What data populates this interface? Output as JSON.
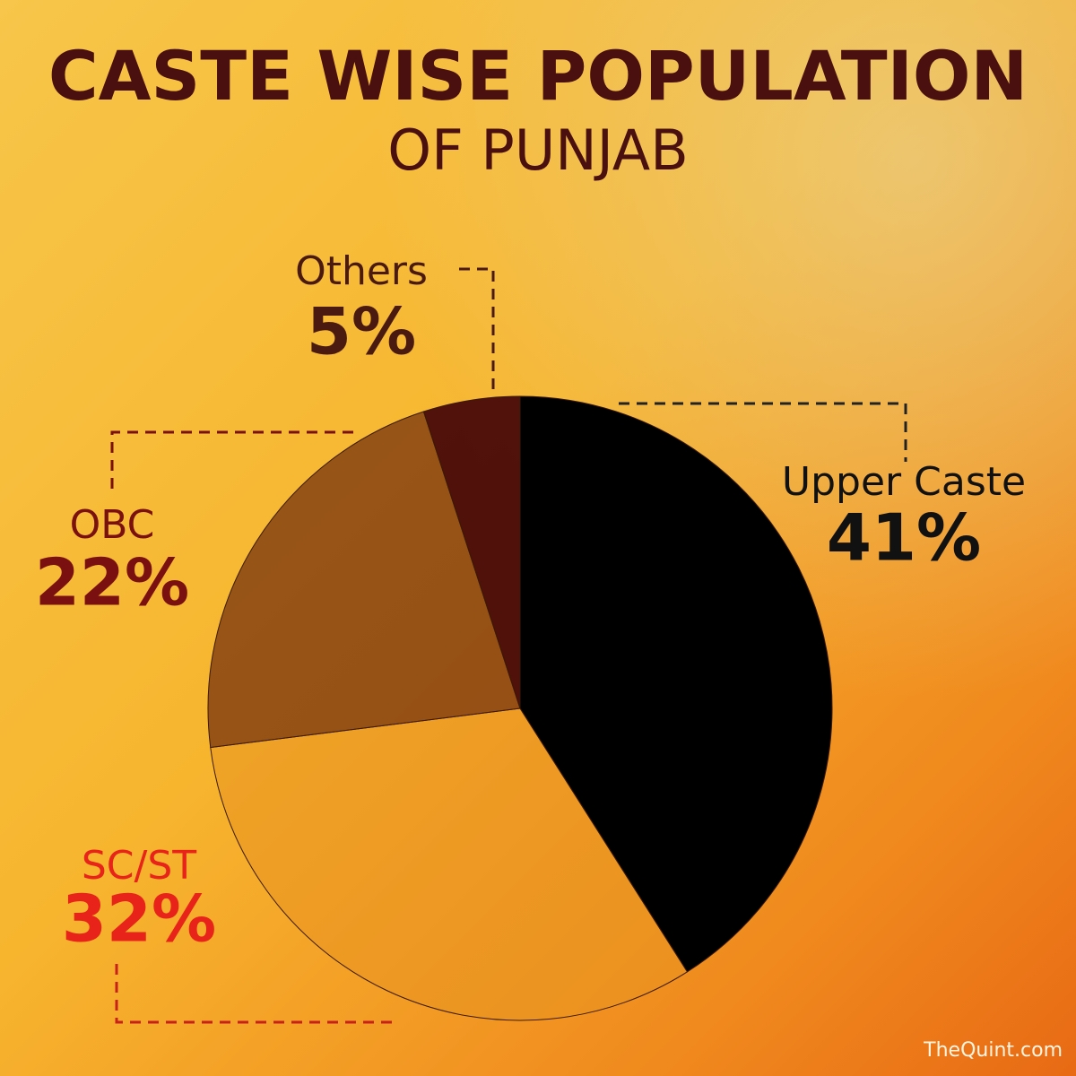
{
  "chart_data": {
    "type": "pie",
    "title": "CASTE WISE POPULATION",
    "subtitle": "OF PUNJAB",
    "categories": [
      "Upper Caste",
      "SC/ST",
      "OBC",
      "Others"
    ],
    "values": [
      41,
      32,
      22,
      5
    ],
    "value_labels": [
      "41%",
      "32%",
      "22%",
      "5%"
    ],
    "colors": [
      "#000000",
      "#e89420",
      "#6e2a0c",
      "#470808"
    ],
    "credit": "TheQuint.com"
  }
}
